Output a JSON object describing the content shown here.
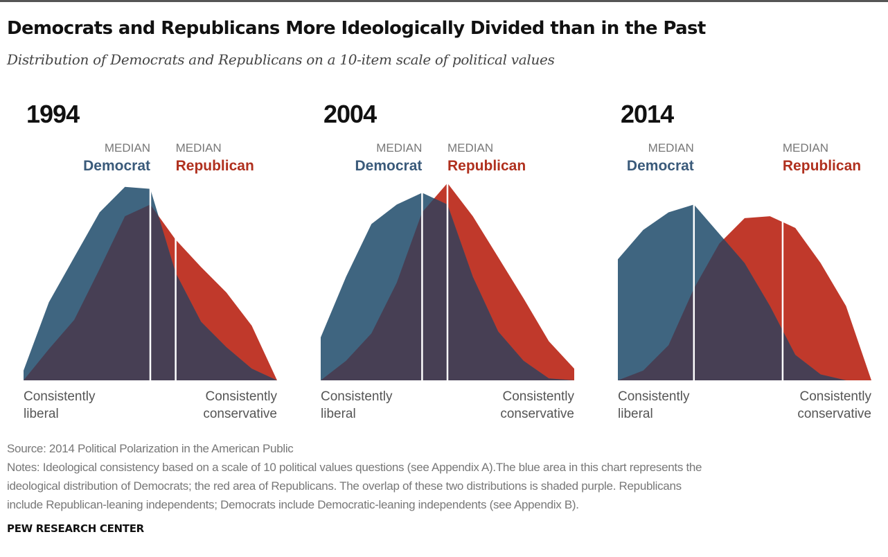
{
  "header": {
    "title": "Democrats and Republicans More Ideologically Divided than in the Past",
    "subtitle": "Distribution of Democrats and Republicans on a 10-item scale of political values"
  },
  "colors": {
    "democrat": "#3f6580",
    "republican": "#c0392b",
    "overlap": "#473f54",
    "democrat_label": "#3a5a7a",
    "republican_label": "#b0301e",
    "median_line": "#ffffff",
    "axis_label": "#555555",
    "median_caption": "#777777"
  },
  "labels": {
    "median": "MEDIAN",
    "democrat": "Democrat",
    "republican": "Republican",
    "left_line1": "Consistently",
    "left_line2": "liberal",
    "right_line1": "Consistently",
    "right_line2": "conservative"
  },
  "chart_data": [
    {
      "type": "area",
      "title": "1994",
      "x": [
        0,
        1,
        2,
        3,
        4,
        5,
        6,
        7,
        8,
        9,
        10
      ],
      "xlim": [
        0,
        10
      ],
      "ylim": [
        0,
        100
      ],
      "series": [
        {
          "name": "Democrat",
          "values": [
            5,
            40,
            63,
            86,
            99,
            98,
            55,
            30,
            17,
            6,
            0
          ],
          "median": 5.0
        },
        {
          "name": "Republican",
          "values": [
            0,
            16,
            31,
            57,
            84,
            90,
            72,
            58,
            45,
            28,
            0
          ],
          "median": 6.0
        }
      ]
    },
    {
      "type": "area",
      "title": "2004",
      "x": [
        0,
        1,
        2,
        3,
        4,
        5,
        6,
        7,
        8,
        9,
        10
      ],
      "xlim": [
        0,
        10
      ],
      "ylim": [
        0,
        100
      ],
      "series": [
        {
          "name": "Democrat",
          "values": [
            22,
            53,
            80,
            90,
            96,
            90,
            53,
            25,
            10,
            1,
            0
          ],
          "median": 4.0
        },
        {
          "name": "Republican",
          "values": [
            0,
            10,
            24,
            50,
            86,
            101,
            84,
            63,
            42,
            20,
            6
          ],
          "median": 5.0
        }
      ]
    },
    {
      "type": "area",
      "title": "2014",
      "x": [
        0,
        1,
        2,
        3,
        4,
        5,
        6,
        7,
        8,
        9,
        10
      ],
      "xlim": [
        0,
        10
      ],
      "ylim": [
        0,
        100
      ],
      "series": [
        {
          "name": "Democrat",
          "values": [
            62,
            77,
            86,
            90,
            75,
            60,
            38,
            13,
            3,
            0,
            0
          ],
          "median": 3.0
        },
        {
          "name": "Republican",
          "values": [
            0,
            5,
            18,
            47,
            70,
            83,
            84,
            78,
            60,
            38,
            0
          ],
          "median": 6.5
        }
      ]
    }
  ],
  "footer": {
    "source": "Source: 2014 Political Polarization in the American Public",
    "notes": [
      "Notes: Ideological consistency based on a scale of 10 political values questions (see Appendix A).The blue area in this chart represents the",
      "ideological distribution of Democrats; the red area of Republicans. The overlap of these two distributions is shaded purple. Republicans",
      "include Republican-leaning independents; Democrats include Democratic-leaning independents (see Appendix B)."
    ],
    "credit": "PEW RESEARCH CENTER"
  }
}
